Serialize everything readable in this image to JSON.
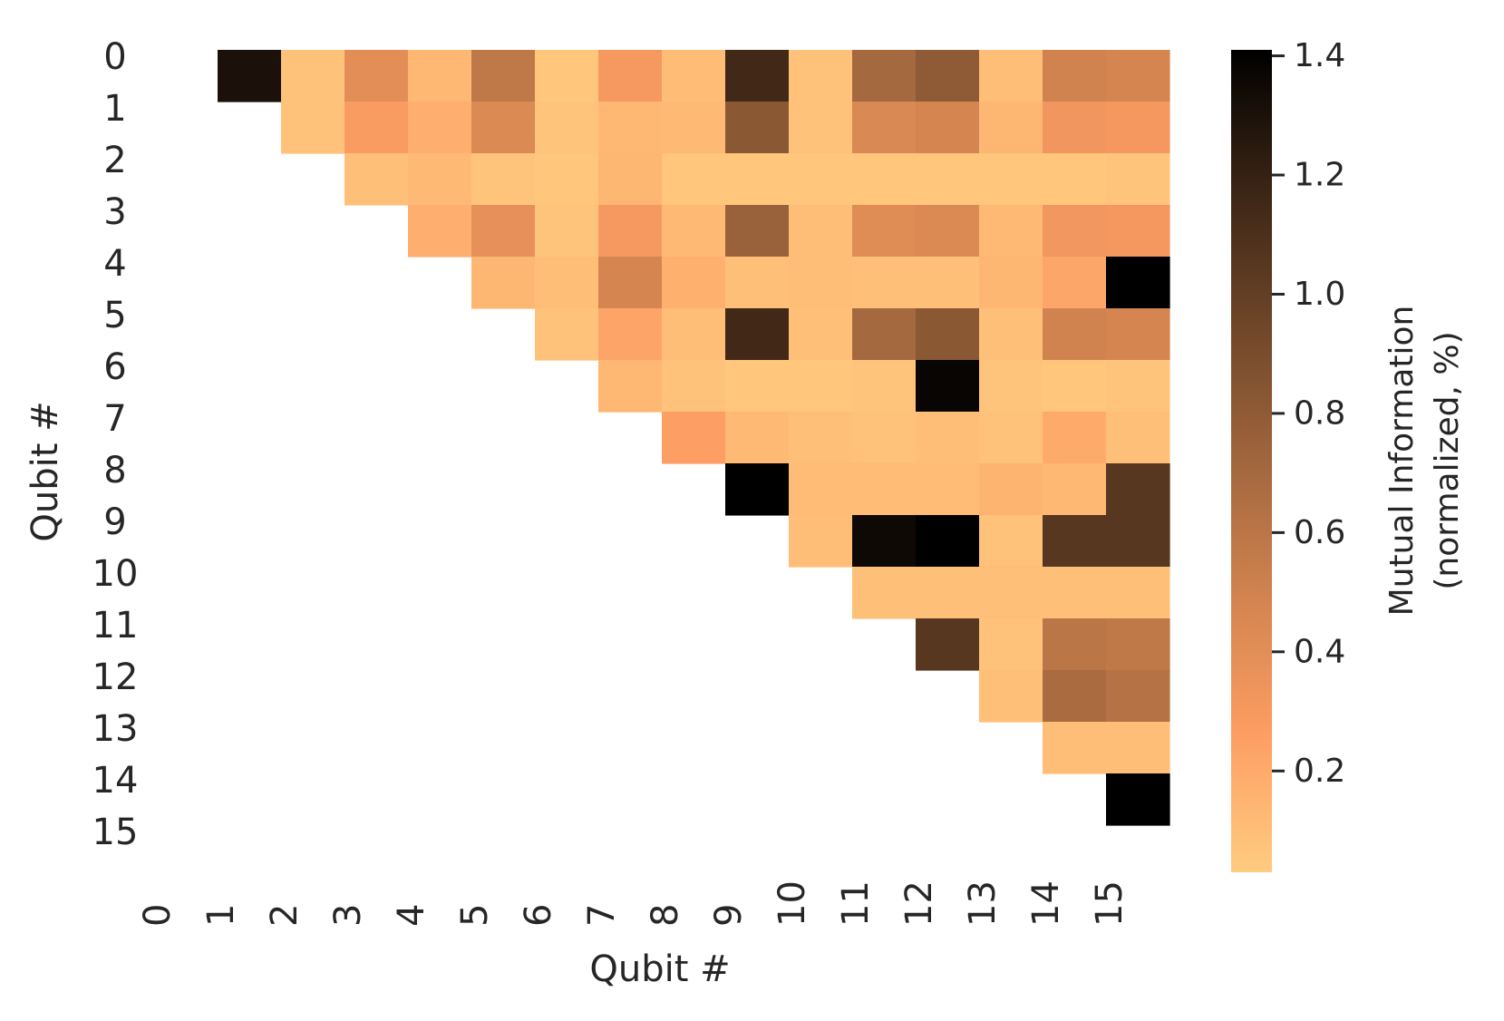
{
  "chart_data": {
    "type": "heatmap",
    "xlabel": "Qubit #",
    "ylabel": "Qubit #",
    "x_tick_labels": [
      "0",
      "1",
      "2",
      "3",
      "4",
      "5",
      "6",
      "7",
      "8",
      "9",
      "10",
      "11",
      "12",
      "13",
      "14",
      "15"
    ],
    "y_tick_labels": [
      "0",
      "1",
      "2",
      "3",
      "4",
      "5",
      "6",
      "7",
      "8",
      "9",
      "10",
      "11",
      "12",
      "13",
      "14",
      "15"
    ],
    "colorbar": {
      "label_line1": "Mutual Information",
      "label_line2": "(normalized, %)",
      "ticks": [
        "0.2",
        "0.4",
        "0.6",
        "0.8",
        "1.0",
        "1.2",
        "1.4"
      ],
      "tick_values": [
        0.2,
        0.4,
        0.6,
        0.8,
        1.0,
        1.2,
        1.4
      ],
      "vmin": 0.03,
      "vmax": 1.41,
      "colormap": "copper_r",
      "color_stops": [
        "#ffcc80",
        "#fd9e64",
        "#d2844f",
        "#a1663e",
        "#6e4628",
        "#3a2415",
        "#000000"
      ]
    },
    "mask": "lower triangle and diagonal",
    "rows": [
      [
        null,
        1.3,
        0.08,
        0.4,
        0.13,
        0.58,
        0.06,
        0.3,
        0.11,
        1.15,
        0.08,
        0.7,
        0.8,
        0.1,
        0.5,
        0.48
      ],
      [
        null,
        null,
        0.08,
        0.28,
        0.18,
        0.44,
        0.07,
        0.13,
        0.12,
        0.82,
        0.08,
        0.45,
        0.48,
        0.14,
        0.33,
        0.31
      ],
      [
        null,
        null,
        null,
        0.09,
        0.12,
        0.07,
        0.06,
        0.14,
        0.06,
        0.06,
        0.06,
        0.06,
        0.06,
        0.06,
        0.06,
        0.07
      ],
      [
        null,
        null,
        null,
        null,
        0.18,
        0.38,
        0.07,
        0.3,
        0.12,
        0.75,
        0.1,
        0.42,
        0.44,
        0.12,
        0.32,
        0.31
      ],
      [
        null,
        null,
        null,
        null,
        null,
        0.14,
        0.1,
        0.48,
        0.17,
        0.09,
        0.1,
        0.09,
        0.09,
        0.14,
        0.22,
        1.41
      ],
      [
        null,
        null,
        null,
        null,
        null,
        null,
        0.08,
        0.23,
        0.1,
        1.15,
        0.09,
        0.7,
        0.82,
        0.09,
        0.5,
        0.48
      ],
      [
        null,
        null,
        null,
        null,
        null,
        null,
        null,
        0.13,
        0.08,
        0.06,
        0.06,
        0.07,
        1.38,
        0.07,
        0.06,
        0.07
      ],
      [
        null,
        null,
        null,
        null,
        null,
        null,
        null,
        null,
        0.26,
        0.12,
        0.09,
        0.08,
        0.1,
        0.08,
        0.2,
        0.09
      ],
      [
        null,
        null,
        null,
        null,
        null,
        null,
        null,
        null,
        null,
        1.41,
        0.11,
        0.11,
        0.11,
        0.15,
        0.13,
        1.05
      ],
      [
        null,
        null,
        null,
        null,
        null,
        null,
        null,
        null,
        null,
        null,
        0.1,
        1.35,
        1.41,
        0.08,
        1.05,
        1.05
      ],
      [
        null,
        null,
        null,
        null,
        null,
        null,
        null,
        null,
        null,
        null,
        null,
        0.09,
        0.09,
        0.09,
        0.09,
        0.09
      ],
      [
        null,
        null,
        null,
        null,
        null,
        null,
        null,
        null,
        null,
        null,
        null,
        null,
        1.05,
        0.08,
        0.6,
        0.58
      ],
      [
        null,
        null,
        null,
        null,
        null,
        null,
        null,
        null,
        null,
        null,
        null,
        null,
        null,
        0.09,
        0.68,
        0.63
      ],
      [
        null,
        null,
        null,
        null,
        null,
        null,
        null,
        null,
        null,
        null,
        null,
        null,
        null,
        null,
        0.1,
        0.1
      ],
      [
        null,
        null,
        null,
        null,
        null,
        null,
        null,
        null,
        null,
        null,
        null,
        null,
        null,
        null,
        null,
        1.41
      ],
      [
        null,
        null,
        null,
        null,
        null,
        null,
        null,
        null,
        null,
        null,
        null,
        null,
        null,
        null,
        null,
        null
      ]
    ]
  }
}
